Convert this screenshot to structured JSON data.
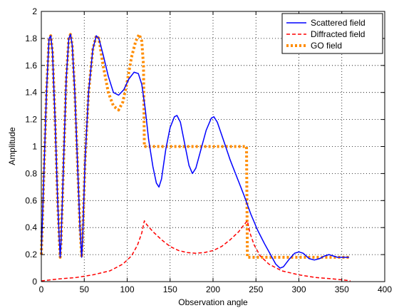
{
  "chart_data": {
    "type": "line",
    "xlabel": "Observation angle",
    "ylabel": "Amplitude",
    "xlim": [
      0,
      400
    ],
    "ylim": [
      0,
      2
    ],
    "xticks": [
      0,
      50,
      100,
      150,
      200,
      250,
      300,
      350,
      400
    ],
    "yticks": [
      0,
      0.2,
      0.4,
      0.6,
      0.8,
      1,
      1.2,
      1.4,
      1.6,
      1.8,
      2
    ],
    "grid": true,
    "grid_style": "dotted",
    "legend_position": "top-right",
    "series": [
      {
        "name": "Scattered field",
        "color": "#0000ff",
        "style": "solid",
        "points": [
          [
            0,
            0.2
          ],
          [
            3,
            0.8
          ],
          [
            6,
            1.4
          ],
          [
            9,
            1.8
          ],
          [
            11,
            1.82
          ],
          [
            13,
            1.7
          ],
          [
            16,
            1.2
          ],
          [
            19,
            0.6
          ],
          [
            21,
            0.3
          ],
          [
            22,
            0.18
          ],
          [
            23,
            0.3
          ],
          [
            26,
            0.9
          ],
          [
            29,
            1.5
          ],
          [
            32,
            1.8
          ],
          [
            34,
            1.83
          ],
          [
            36,
            1.75
          ],
          [
            39,
            1.4
          ],
          [
            42,
            0.9
          ],
          [
            45,
            0.4
          ],
          [
            47,
            0.18
          ],
          [
            48,
            0.3
          ],
          [
            51,
            0.9
          ],
          [
            55,
            1.4
          ],
          [
            60,
            1.72
          ],
          [
            64,
            1.82
          ],
          [
            67,
            1.8
          ],
          [
            72,
            1.68
          ],
          [
            78,
            1.52
          ],
          [
            84,
            1.4
          ],
          [
            90,
            1.38
          ],
          [
            96,
            1.42
          ],
          [
            102,
            1.5
          ],
          [
            108,
            1.55
          ],
          [
            113,
            1.54
          ],
          [
            117,
            1.46
          ],
          [
            121,
            1.28
          ],
          [
            125,
            1.05
          ],
          [
            130,
            0.85
          ],
          [
            134,
            0.73
          ],
          [
            137,
            0.7
          ],
          [
            140,
            0.76
          ],
          [
            145,
            0.98
          ],
          [
            150,
            1.14
          ],
          [
            155,
            1.22
          ],
          [
            158,
            1.23
          ],
          [
            162,
            1.18
          ],
          [
            167,
            1.02
          ],
          [
            172,
            0.86
          ],
          [
            176,
            0.8
          ],
          [
            180,
            0.84
          ],
          [
            186,
            0.98
          ],
          [
            192,
            1.12
          ],
          [
            198,
            1.21
          ],
          [
            201,
            1.22
          ],
          [
            205,
            1.18
          ],
          [
            212,
            1.05
          ],
          [
            220,
            0.9
          ],
          [
            228,
            0.77
          ],
          [
            236,
            0.64
          ],
          [
            244,
            0.5
          ],
          [
            252,
            0.38
          ],
          [
            260,
            0.28
          ],
          [
            267,
            0.2
          ],
          [
            273,
            0.13
          ],
          [
            278,
            0.1
          ],
          [
            282,
            0.11
          ],
          [
            288,
            0.16
          ],
          [
            295,
            0.21
          ],
          [
            300,
            0.22
          ],
          [
            305,
            0.21
          ],
          [
            312,
            0.17
          ],
          [
            318,
            0.16
          ],
          [
            324,
            0.17
          ],
          [
            330,
            0.19
          ],
          [
            335,
            0.2
          ],
          [
            340,
            0.19
          ],
          [
            345,
            0.18
          ],
          [
            350,
            0.18
          ],
          [
            358,
            0.18
          ]
        ]
      },
      {
        "name": "Diffracted field",
        "color": "#ff0000",
        "style": "dashed",
        "points": [
          [
            0,
            0.005
          ],
          [
            20,
            0.02
          ],
          [
            40,
            0.03
          ],
          [
            60,
            0.05
          ],
          [
            80,
            0.08
          ],
          [
            95,
            0.13
          ],
          [
            105,
            0.19
          ],
          [
            112,
            0.27
          ],
          [
            117,
            0.36
          ],
          [
            120,
            0.45
          ],
          [
            123,
            0.42
          ],
          [
            130,
            0.37
          ],
          [
            140,
            0.31
          ],
          [
            150,
            0.26
          ],
          [
            160,
            0.23
          ],
          [
            170,
            0.215
          ],
          [
            180,
            0.21
          ],
          [
            190,
            0.215
          ],
          [
            200,
            0.23
          ],
          [
            210,
            0.26
          ],
          [
            220,
            0.31
          ],
          [
            230,
            0.37
          ],
          [
            236,
            0.42
          ],
          [
            240,
            0.45
          ],
          [
            243,
            0.36
          ],
          [
            248,
            0.27
          ],
          [
            255,
            0.19
          ],
          [
            265,
            0.13
          ],
          [
            280,
            0.08
          ],
          [
            300,
            0.05
          ],
          [
            320,
            0.03
          ],
          [
            340,
            0.02
          ],
          [
            355,
            0.01
          ],
          [
            360,
            0.005
          ]
        ]
      },
      {
        "name": "GO field",
        "color": "#ff8c00",
        "style": "dotted-thick",
        "points": [
          [
            0,
            0.2
          ],
          [
            3,
            0.8
          ],
          [
            6,
            1.4
          ],
          [
            9,
            1.8
          ],
          [
            11,
            1.82
          ],
          [
            13,
            1.7
          ],
          [
            16,
            1.2
          ],
          [
            19,
            0.6
          ],
          [
            21,
            0.3
          ],
          [
            22,
            0.18
          ],
          [
            23,
            0.3
          ],
          [
            26,
            0.9
          ],
          [
            29,
            1.5
          ],
          [
            32,
            1.8
          ],
          [
            34,
            1.83
          ],
          [
            36,
            1.75
          ],
          [
            39,
            1.4
          ],
          [
            42,
            0.9
          ],
          [
            45,
            0.4
          ],
          [
            47,
            0.18
          ],
          [
            48,
            0.3
          ],
          [
            51,
            0.9
          ],
          [
            55,
            1.4
          ],
          [
            60,
            1.72
          ],
          [
            64,
            1.82
          ],
          [
            67,
            1.8
          ],
          [
            72,
            1.6
          ],
          [
            78,
            1.4
          ],
          [
            84,
            1.3
          ],
          [
            90,
            1.27
          ],
          [
            95,
            1.33
          ],
          [
            100,
            1.48
          ],
          [
            105,
            1.66
          ],
          [
            110,
            1.78
          ],
          [
            114,
            1.83
          ],
          [
            117,
            1.78
          ],
          [
            119,
            1.6
          ],
          [
            120,
            1.0
          ],
          [
            150,
            1.0
          ],
          [
            180,
            1.0
          ],
          [
            210,
            1.0
          ],
          [
            239,
            1.0
          ],
          [
            240,
            0.18
          ],
          [
            270,
            0.18
          ],
          [
            300,
            0.18
          ],
          [
            330,
            0.18
          ],
          [
            360,
            0.18
          ]
        ]
      }
    ]
  }
}
